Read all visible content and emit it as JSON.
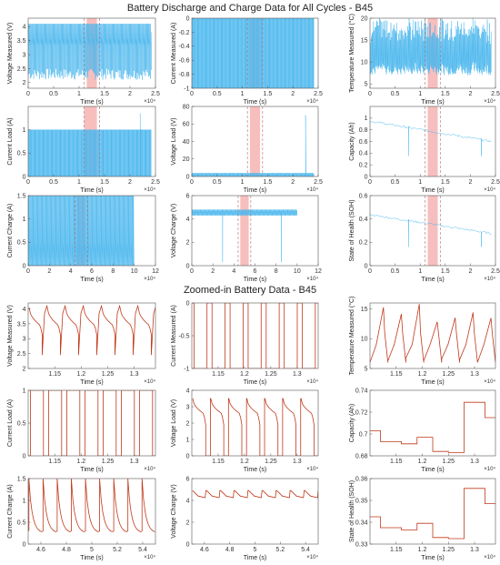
{
  "figure": {
    "title_top": "Battery Discharge and Charge Data for All Cycles - B45",
    "title_bottom": "Zoomed-in Battery Data - B45",
    "colors": {
      "overview_line": "#4db8ee",
      "zoom_line": "#c0391b",
      "highlight": "#f4a8a8",
      "dashed": "#b86a6a",
      "axis": "#555555"
    }
  },
  "chart_data": [
    {
      "id": "o1",
      "type": "line",
      "xlabel": "Time (s)",
      "ylabel": "Voltage Measured (V)",
      "xlim": [
        0,
        2.5
      ],
      "ylim": [
        1.8,
        4.3
      ],
      "xticks": [
        0,
        0.5,
        1,
        1.5,
        2,
        2.5
      ],
      "xticklabels": [
        "0",
        "0.5",
        "1",
        "1.5",
        "2",
        "2.5"
      ],
      "yticks": [
        2,
        2.5,
        3,
        3.5,
        4
      ],
      "yticklabels": [
        "2",
        "2.5",
        "3",
        "3.5",
        "4"
      ],
      "xmultiplier": "×10⁴",
      "pattern": "voltage",
      "highlight": [
        1.15,
        1.35
      ],
      "dashed": [
        1.1,
        1.4
      ],
      "xend": 2.42
    },
    {
      "id": "o2",
      "type": "line",
      "xlabel": "Time (s)",
      "ylabel": "Current Measured (A)",
      "xlim": [
        0,
        2.5
      ],
      "ylim": [
        -1,
        0
      ],
      "xticks": [
        0,
        0.5,
        1,
        1.5,
        2,
        2.5
      ],
      "xticklabels": [
        "0",
        "0.5",
        "1",
        "1.5",
        "2",
        "2.5"
      ],
      "yticks": [
        -1,
        -0.8,
        -0.6,
        -0.4,
        -0.2,
        0
      ],
      "yticklabels": [
        "-1",
        "-0.8",
        "-0.6",
        "-0.4",
        "-0.2",
        "0"
      ],
      "xmultiplier": "×10⁴",
      "pattern": "square",
      "highlight": [
        1.15,
        1.35
      ],
      "dashed": [
        1.1,
        1.4
      ],
      "xend": 2.42
    },
    {
      "id": "o3",
      "type": "line",
      "xlabel": "Time (s)",
      "ylabel": "Temperature Measured (°C)",
      "xlim": [
        0,
        2.5
      ],
      "ylim": [
        4,
        20
      ],
      "xticks": [
        0,
        0.5,
        1,
        1.5,
        2,
        2.5
      ],
      "xticklabels": [
        "0",
        "0.5",
        "1",
        "1.5",
        "2",
        "2.5"
      ],
      "yticks": [
        5,
        10,
        15,
        20
      ],
      "yticklabels": [
        "5",
        "10",
        "15",
        "20"
      ],
      "xmultiplier": "×10⁴",
      "pattern": "temp",
      "highlight": [
        1.15,
        1.35
      ],
      "dashed": [
        1.1,
        1.4
      ],
      "xend": 2.42
    },
    {
      "id": "o4",
      "type": "line",
      "xlabel": "Time (s)",
      "ylabel": "Current Load (A)",
      "xlim": [
        0,
        2.5
      ],
      "ylim": [
        0,
        1.5
      ],
      "xticks": [
        0,
        0.5,
        1,
        1.5,
        2,
        2.5
      ],
      "xticklabels": [
        "0",
        "0.5",
        "1",
        "1.5",
        "2",
        "2.5"
      ],
      "yticks": [
        0,
        0.5,
        1
      ],
      "yticklabels": [
        "0",
        "0.5",
        "1"
      ],
      "xmultiplier": "×10⁴",
      "pattern": "load",
      "highlight": [
        1.1,
        1.35
      ],
      "dashed": [
        1.1,
        1.4
      ],
      "xend": 2.42
    },
    {
      "id": "o5",
      "type": "line",
      "xlabel": "Time (s)",
      "ylabel": "Voltage Load (V)",
      "xlim": [
        0,
        2.5
      ],
      "ylim": [
        0,
        80
      ],
      "xticks": [
        0,
        0.5,
        1,
        1.5,
        2,
        2.5
      ],
      "xticklabels": [
        "0",
        "0.5",
        "1",
        "1.5",
        "2",
        "2.5"
      ],
      "yticks": [
        0,
        20,
        40,
        60,
        80
      ],
      "yticklabels": [
        "0",
        "20",
        "40",
        "60",
        "80"
      ],
      "xmultiplier": "×10⁴",
      "pattern": "vload",
      "highlight": [
        1.15,
        1.35
      ],
      "dashed": [
        1.1,
        1.4
      ],
      "xend": 2.42
    },
    {
      "id": "o6",
      "type": "line",
      "xlabel": "Time (s)",
      "ylabel": "Capacity (Ah)",
      "xlim": [
        0,
        2.5
      ],
      "ylim": [
        0,
        1.2
      ],
      "xticks": [
        0,
        0.5,
        1,
        1.5,
        2,
        2.5
      ],
      "xticklabels": [
        "0",
        "0.5",
        "1",
        "1.5",
        "2",
        "2.5"
      ],
      "yticks": [
        0,
        0.2,
        0.4,
        0.6,
        0.8,
        1
      ],
      "yticklabels": [
        "0",
        "0.2",
        "0.4",
        "0.6",
        "0.8",
        "1"
      ],
      "xmultiplier": "×10⁴",
      "pattern": "cap",
      "highlight": [
        1.15,
        1.35
      ],
      "dashed": [
        1.1,
        1.4
      ],
      "xend": 2.42
    },
    {
      "id": "o7",
      "type": "line",
      "xlabel": "Time (s)",
      "ylabel": "Current Charge (A)",
      "xlim": [
        0,
        12
      ],
      "ylim": [
        0,
        1.5
      ],
      "xticks": [
        0,
        2,
        4,
        6,
        8,
        10,
        12
      ],
      "xticklabels": [
        "0",
        "2",
        "4",
        "6",
        "8",
        "10",
        "12"
      ],
      "yticks": [
        0,
        0.5,
        1,
        1.5
      ],
      "yticklabels": [
        "0",
        "0.5",
        "1",
        "1.5"
      ],
      "xmultiplier": "×10⁴",
      "pattern": "ccharge",
      "highlight": [
        4.6,
        5.4
      ],
      "dashed": [
        4.4,
        5.6
      ],
      "xend": 10
    },
    {
      "id": "o8",
      "type": "line",
      "xlabel": "Time (s)",
      "ylabel": "Voltage Charge (V)",
      "xlim": [
        0,
        12
      ],
      "ylim": [
        0,
        6
      ],
      "xticks": [
        0,
        2,
        4,
        6,
        8,
        10,
        12
      ],
      "xticklabels": [
        "0",
        "2",
        "4",
        "6",
        "8",
        "10",
        "12"
      ],
      "yticks": [
        0,
        2,
        4,
        6
      ],
      "yticklabels": [
        "0",
        "2",
        "4",
        "6"
      ],
      "xmultiplier": "×10⁴",
      "pattern": "vcharge",
      "highlight": [
        4.6,
        5.4
      ],
      "dashed": [
        4.4,
        5.6
      ],
      "xend": 10
    },
    {
      "id": "o9",
      "type": "line",
      "xlabel": "Time (s)",
      "ylabel": "State of Health (SOH)",
      "xlim": [
        0,
        2.5
      ],
      "ylim": [
        0,
        0.6
      ],
      "xticks": [
        0,
        0.5,
        1,
        1.5,
        2,
        2.5
      ],
      "xticklabels": [
        "0",
        "0.5",
        "1",
        "1.5",
        "2",
        "2.5"
      ],
      "yticks": [
        0,
        0.2,
        0.4,
        0.6
      ],
      "yticklabels": [
        "0",
        "0.2",
        "0.4",
        "0.6"
      ],
      "xmultiplier": "×10⁴",
      "pattern": "soh",
      "highlight": [
        1.15,
        1.35
      ],
      "dashed": [
        1.1,
        1.4
      ],
      "xend": 2.42
    },
    {
      "id": "z1",
      "type": "line",
      "xlabel": "Time (s)",
      "ylabel": "Voltage Measured (V)",
      "xlim": [
        1.1,
        1.34
      ],
      "ylim": [
        2,
        4.2
      ],
      "xticks": [
        1.15,
        1.2,
        1.25,
        1.3
      ],
      "xticklabels": [
        "1.15",
        "1.2",
        "1.25",
        "1.3"
      ],
      "yticks": [
        2,
        2.5,
        3,
        3.5,
        4
      ],
      "yticklabels": [
        "2",
        "2.5",
        "3",
        "3.5",
        "4"
      ],
      "xmultiplier": "×10⁴",
      "pattern": "zvolt",
      "cycles": 7
    },
    {
      "id": "z2",
      "type": "line",
      "xlabel": "Time (s)",
      "ylabel": "Current Measured (A)",
      "xlim": [
        1.1,
        1.34
      ],
      "ylim": [
        -1,
        0
      ],
      "xticks": [
        1.15,
        1.2,
        1.25,
        1.3
      ],
      "xticklabels": [
        "1.15",
        "1.2",
        "1.25",
        "1.3"
      ],
      "yticks": [
        -1,
        -0.5,
        0
      ],
      "yticklabels": [
        "-1",
        "-0.5",
        "0"
      ],
      "xmultiplier": "×10⁴",
      "pattern": "zsq_neg",
      "cycles": 7
    },
    {
      "id": "z3",
      "type": "line",
      "xlabel": "Time (s)",
      "ylabel": "Temperature Measured (°C)",
      "xlim": [
        1.1,
        1.34
      ],
      "ylim": [
        5,
        16
      ],
      "xticks": [
        1.15,
        1.2,
        1.25,
        1.3
      ],
      "xticklabels": [
        "1.15",
        "1.2",
        "1.25",
        "1.3"
      ],
      "yticks": [
        5,
        10,
        15
      ],
      "yticklabels": [
        "5",
        "10",
        "15"
      ],
      "xmultiplier": "×10⁴",
      "pattern": "ztemp",
      "cycles": 7
    },
    {
      "id": "z4",
      "type": "line",
      "xlabel": "Time (s)",
      "ylabel": "Current Load (A)",
      "xlim": [
        1.1,
        1.34
      ],
      "ylim": [
        0,
        1
      ],
      "xticks": [
        1.15,
        1.2,
        1.25,
        1.3
      ],
      "xticklabels": [
        "1.15",
        "1.2",
        "1.25",
        "1.3"
      ],
      "yticks": [
        0,
        0.5,
        1
      ],
      "yticklabels": [
        "0",
        "0.5",
        "1"
      ],
      "xmultiplier": "×10⁴",
      "pattern": "zsq_pos",
      "cycles": 7
    },
    {
      "id": "z5",
      "type": "line",
      "xlabel": "Time (s)",
      "ylabel": "Voltage Load (V)",
      "xlim": [
        1.1,
        1.34
      ],
      "ylim": [
        0,
        4
      ],
      "xticks": [
        1.15,
        1.2,
        1.25,
        1.3
      ],
      "xticklabels": [
        "1.15",
        "1.2",
        "1.25",
        "1.3"
      ],
      "yticks": [
        0,
        1,
        2,
        3,
        4
      ],
      "yticklabels": [
        "0",
        "1",
        "2",
        "3",
        "4"
      ],
      "xmultiplier": "×10⁴",
      "pattern": "zvload",
      "cycles": 7
    },
    {
      "id": "z6",
      "type": "line",
      "xlabel": "Time (s)",
      "ylabel": "Capacity (Ah)",
      "xlim": [
        1.1,
        1.34
      ],
      "ylim": [
        0.68,
        0.74
      ],
      "xticks": [
        1.15,
        1.2,
        1.25,
        1.3
      ],
      "xticklabels": [
        "1.15",
        "1.2",
        "1.25",
        "1.3"
      ],
      "yticks": [
        0.68,
        0.7,
        0.72,
        0.74
      ],
      "yticklabels": [
        "0.68",
        "0.7",
        "0.72",
        "0.74"
      ],
      "xmultiplier": "×10⁴",
      "pattern": "step",
      "steps": [
        [
          1.1,
          0.703
        ],
        [
          1.12,
          0.693
        ],
        [
          1.16,
          0.691
        ],
        [
          1.19,
          0.697
        ],
        [
          1.22,
          0.684
        ],
        [
          1.25,
          0.683
        ],
        [
          1.28,
          0.729
        ],
        [
          1.32,
          0.715
        ],
        [
          1.34,
          0.715
        ]
      ]
    },
    {
      "id": "z7",
      "type": "line",
      "xlabel": "Time (s)",
      "ylabel": "Current Charge (A)",
      "xlim": [
        4.5,
        5.5
      ],
      "ylim": [
        0,
        1.5
      ],
      "xticks": [
        4.6,
        4.8,
        5,
        5.2,
        5.4
      ],
      "xticklabels": [
        "4.6",
        "4.8",
        "5",
        "5.2",
        "5.4"
      ],
      "yticks": [
        0,
        0.5,
        1,
        1.5
      ],
      "yticklabels": [
        "0",
        "0.5",
        "1",
        "1.5"
      ],
      "xmultiplier": "×10⁴",
      "pattern": "zcc",
      "cycles": 9
    },
    {
      "id": "z8",
      "type": "line",
      "xlabel": "Time (s)",
      "ylabel": "Voltage Charge (V)",
      "xlim": [
        4.5,
        5.5
      ],
      "ylim": [
        0,
        6
      ],
      "xticks": [
        4.6,
        4.8,
        5,
        5.2,
        5.4
      ],
      "xticklabels": [
        "4.6",
        "4.8",
        "5",
        "5.2",
        "5.4"
      ],
      "yticks": [
        0,
        2,
        4,
        6
      ],
      "yticklabels": [
        "0",
        "2",
        "4",
        "6"
      ],
      "xmultiplier": "×10⁴",
      "pattern": "zvc",
      "cycles": 9
    },
    {
      "id": "z9",
      "type": "line",
      "xlabel": "Time (s)",
      "ylabel": "State of Health (SOH)",
      "xlim": [
        1.1,
        1.34
      ],
      "ylim": [
        0.33,
        0.36
      ],
      "xticks": [
        1.15,
        1.2,
        1.25,
        1.3
      ],
      "xticklabels": [
        "1.15",
        "1.2",
        "1.25",
        "1.3"
      ],
      "yticks": [
        0.33,
        0.34,
        0.35,
        0.36
      ],
      "yticklabels": [
        "0.33",
        "0.34",
        "0.35",
        "0.36"
      ],
      "xmultiplier": "×10⁴",
      "pattern": "step",
      "steps": [
        [
          1.1,
          0.3425
        ],
        [
          1.12,
          0.3375
        ],
        [
          1.16,
          0.3365
        ],
        [
          1.19,
          0.3395
        ],
        [
          1.22,
          0.333
        ],
        [
          1.25,
          0.3325
        ],
        [
          1.28,
          0.3555
        ],
        [
          1.32,
          0.3485
        ],
        [
          1.34,
          0.3485
        ]
      ]
    }
  ]
}
